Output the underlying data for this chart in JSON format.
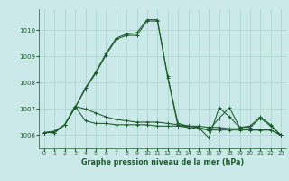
{
  "title": "Graphe pression niveau de la mer (hPa)",
  "bg_color": "#cbe9e9",
  "grid_color": "#a8d4cc",
  "line_color": "#1a5c2a",
  "xlim": [
    -0.5,
    23.5
  ],
  "ylim": [
    1005.5,
    1010.8
  ],
  "yticks": [
    1006,
    1007,
    1008,
    1009,
    1010
  ],
  "xticks": [
    0,
    1,
    2,
    3,
    4,
    5,
    6,
    7,
    8,
    9,
    10,
    11,
    12,
    13,
    14,
    15,
    16,
    17,
    18,
    19,
    20,
    21,
    22,
    23
  ],
  "series": [
    [
      1006.1,
      1006.1,
      1006.4,
      1007.05,
      1007.75,
      1008.35,
      1009.05,
      1009.65,
      1009.8,
      1009.8,
      1010.35,
      1010.35,
      1008.2,
      1006.35,
      1006.3,
      1006.25,
      1006.2,
      1006.65,
      1007.05,
      1006.3,
      1006.3,
      1006.65,
      1006.35,
      1006.0
    ],
    [
      1006.1,
      1006.1,
      1006.4,
      1007.05,
      1007.8,
      1008.4,
      1009.1,
      1009.7,
      1009.85,
      1009.9,
      1010.4,
      1010.4,
      1008.25,
      1006.45,
      1006.35,
      1006.3,
      1005.9,
      1007.05,
      1006.7,
      1006.3,
      1006.35,
      1006.7,
      1006.4,
      1006.0
    ],
    [
      1006.1,
      1006.15,
      1006.4,
      1007.1,
      1007.0,
      1006.85,
      1006.7,
      1006.6,
      1006.55,
      1006.5,
      1006.5,
      1006.5,
      1006.45,
      1006.4,
      1006.35,
      1006.35,
      1006.3,
      1006.3,
      1006.25,
      1006.25,
      1006.2,
      1006.2,
      1006.2,
      1006.0
    ],
    [
      1006.1,
      1006.15,
      1006.4,
      1007.1,
      1006.55,
      1006.45,
      1006.45,
      1006.4,
      1006.4,
      1006.4,
      1006.4,
      1006.35,
      1006.35,
      1006.35,
      1006.35,
      1006.3,
      1006.2,
      1006.2,
      1006.2,
      1006.2,
      1006.2,
      1006.2,
      1006.2,
      1006.0
    ]
  ]
}
